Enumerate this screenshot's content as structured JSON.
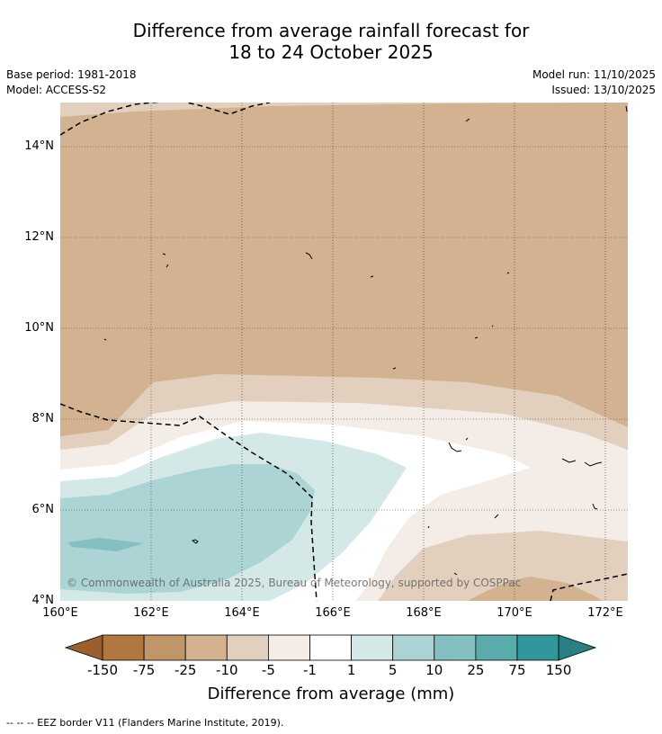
{
  "header": {
    "title_line1": "Difference from average rainfall forecast for",
    "title_line2": "18 to 24 October 2025",
    "base_period": "Base period: 1981-2018",
    "model": "Model: ACCESS-S2",
    "model_run": "Model run: 11/10/2025",
    "issued": "Issued: 13/10/2025"
  },
  "map": {
    "lat_ticks": [
      "14°N",
      "12°N",
      "10°N",
      "8°N",
      "6°N",
      "4°N"
    ],
    "lon_ticks": [
      "160°E",
      "162°E",
      "164°E",
      "166°E",
      "168°E",
      "170°E",
      "172°E"
    ],
    "copyright": "© Commonwealth of Australia 2025, Bureau of Meteorology, supported by COSPPac"
  },
  "colorbar": {
    "labels": [
      "-150",
      "-75",
      "-25",
      "-10",
      "-5",
      "-1",
      "1",
      "5",
      "10",
      "25",
      "75",
      "150"
    ],
    "colors": [
      "#9a5f2e",
      "#b0773e",
      "#c1956a",
      "#d3b291",
      "#e3cfbd",
      "#f4ece6",
      "#ffffff",
      "#d3e8e7",
      "#acd4d4",
      "#84c0c1",
      "#5aabac",
      "#31979a",
      "#2a7f82"
    ],
    "title": "Difference from average (mm)"
  },
  "footer": {
    "eez_note": "--  --  -- EEZ border V11 (Flanders Marine Institute, 2019)."
  }
}
